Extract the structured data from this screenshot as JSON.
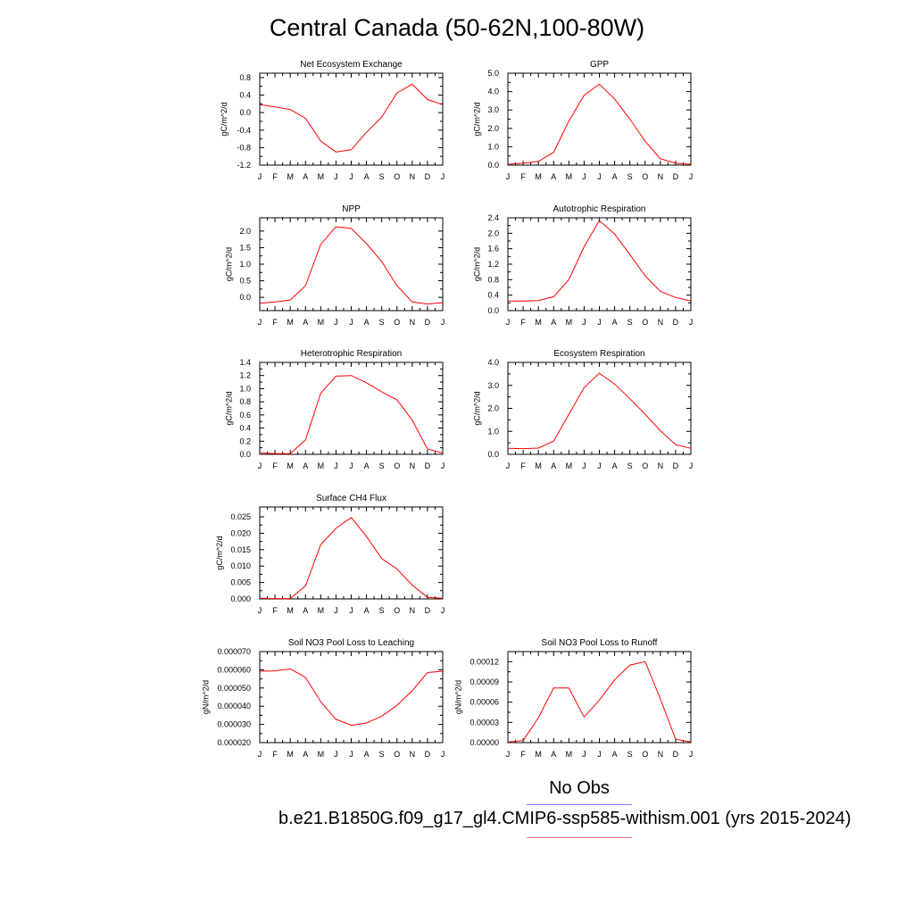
{
  "title": "Central Canada (50-62N,100-80W)",
  "months": [
    "J",
    "F",
    "M",
    "A",
    "M",
    "J",
    "J",
    "A",
    "S",
    "O",
    "N",
    "D",
    "J"
  ],
  "legend": {
    "obs_label": "No Obs",
    "case_label": "b.e21.B1850G.f09_g17_gl4.CMIP6-ssp585-withism.001 (yrs 2015-2024)",
    "obs_color": "#7b7bff",
    "case_color": "#ff7b7b"
  },
  "line_color": "#ff0000",
  "chart_data": [
    {
      "type": "line",
      "title": "Net Ecosystem Exchange",
      "ylabel": "gC/m^2/d",
      "ylim": [
        -1.2,
        0.9
      ],
      "yticks": [
        -1.2,
        -0.8,
        -0.4,
        0.0,
        0.4,
        0.8
      ],
      "ytick_labels": [
        "-1.2",
        "-0.8",
        "-0.4",
        "0.0",
        "0.4",
        "0.8"
      ],
      "values": [
        0.18,
        0.13,
        0.07,
        -0.13,
        -0.65,
        -0.9,
        -0.85,
        -0.45,
        -0.1,
        0.45,
        0.65,
        0.3,
        0.18
      ]
    },
    {
      "type": "line",
      "title": "GPP",
      "ylabel": "gC/m^2/d",
      "ylim": [
        0.0,
        5.0
      ],
      "yticks": [
        0,
        1,
        2,
        3,
        4,
        5
      ],
      "ytick_labels": [
        "0.0",
        "1.0",
        "2.0",
        "3.0",
        "4.0",
        "5.0"
      ],
      "values": [
        0.05,
        0.1,
        0.2,
        0.7,
        2.4,
        3.8,
        4.4,
        3.6,
        2.5,
        1.3,
        0.35,
        0.1,
        0.05
      ]
    },
    {
      "type": "line",
      "title": "NPP",
      "ylabel": "gC/m^2/d",
      "ylim": [
        -0.4,
        2.4
      ],
      "yticks": [
        0.0,
        0.5,
        1.0,
        1.5,
        2.0
      ],
      "ytick_labels": [
        "0.0",
        "0.5",
        "1.0",
        "1.5",
        "2.0"
      ],
      "values": [
        -0.18,
        -0.14,
        -0.08,
        0.35,
        1.6,
        2.13,
        2.08,
        1.62,
        1.08,
        0.35,
        -0.14,
        -0.2,
        -0.16
      ]
    },
    {
      "type": "line",
      "title": "Autotrophic Respiration",
      "ylabel": "gC/m^2/d",
      "ylim": [
        0.0,
        2.4
      ],
      "yticks": [
        0.0,
        0.4,
        0.8,
        1.2,
        1.6,
        2.0,
        2.4
      ],
      "ytick_labels": [
        "0.0",
        "0.4",
        "0.8",
        "1.2",
        "1.6",
        "2.0",
        "2.4"
      ],
      "values": [
        0.25,
        0.25,
        0.26,
        0.36,
        0.8,
        1.65,
        2.33,
        1.98,
        1.45,
        0.9,
        0.5,
        0.34,
        0.25
      ]
    },
    {
      "type": "line",
      "title": "Heterotrophic Respiration",
      "ylabel": "gC/m^2/d",
      "ylim": [
        0.0,
        1.4
      ],
      "yticks": [
        0.0,
        0.2,
        0.4,
        0.6,
        0.8,
        1.0,
        1.2,
        1.4
      ],
      "ytick_labels": [
        "0.0",
        "0.2",
        "0.4",
        "0.6",
        "0.8",
        "1.0",
        "1.2",
        "1.4"
      ],
      "values": [
        0.02,
        0.01,
        0.01,
        0.22,
        0.93,
        1.19,
        1.2,
        1.09,
        0.95,
        0.83,
        0.52,
        0.08,
        0.02
      ]
    },
    {
      "type": "line",
      "title": "Ecosystem Respiration",
      "ylabel": "gC/m^2/d",
      "ylim": [
        0.0,
        4.0
      ],
      "yticks": [
        0,
        1,
        2,
        3,
        4
      ],
      "ytick_labels": [
        "0.0",
        "1.0",
        "2.0",
        "3.0",
        "4.0"
      ],
      "values": [
        0.26,
        0.25,
        0.27,
        0.58,
        1.74,
        2.9,
        3.53,
        3.06,
        2.42,
        1.74,
        1.03,
        0.42,
        0.26
      ]
    },
    {
      "type": "line",
      "title": "Surface CH4 Flux",
      "ylabel": "gC/m^2/d",
      "ylim": [
        0.0,
        0.028
      ],
      "yticks": [
        0.0,
        0.005,
        0.01,
        0.015,
        0.02,
        0.025
      ],
      "ytick_labels": [
        "0.000",
        "0.005",
        "0.010",
        "0.015",
        "0.020",
        "0.025"
      ],
      "values": [
        0.0002,
        0.0001,
        0.0001,
        0.004,
        0.0165,
        0.0215,
        0.0248,
        0.019,
        0.0123,
        0.0091,
        0.0042,
        0.0005,
        0.0002
      ]
    },
    null,
    {
      "type": "line",
      "title": "Soil NO3 Pool Loss to Leaching",
      "ylabel": "gN/m^2/d",
      "ylim": [
        2e-05,
        7e-05
      ],
      "yticks": [
        2e-05,
        3e-05,
        4e-05,
        5e-05,
        6e-05,
        7e-05
      ],
      "ytick_labels": [
        "0.000020",
        "0.000030",
        "0.000040",
        "0.000050",
        "0.000060",
        "0.000070"
      ],
      "values": [
        5.92e-05,
        5.94e-05,
        6.05e-05,
        5.58e-05,
        4.25e-05,
        3.28e-05,
        2.95e-05,
        3.08e-05,
        3.45e-05,
        4.05e-05,
        4.85e-05,
        5.85e-05,
        5.92e-05
      ]
    },
    {
      "type": "line",
      "title": "Soil NO3 Pool Loss to Runoff",
      "ylabel": "gN/m^2/d",
      "ylim": [
        0.0,
        0.000135
      ],
      "yticks": [
        0.0,
        3e-05,
        6e-05,
        9e-05,
        0.00012
      ],
      "ytick_labels": [
        "0.00000",
        "0.00003",
        "0.00006",
        "0.00009",
        "0.00012"
      ],
      "values": [
        1e-06,
        3e-06,
        3.7e-05,
        8.1e-05,
        8.1e-05,
        3.8e-05,
        6.3e-05,
        9.3e-05,
        0.000115,
        0.00012,
        6.5e-05,
        5e-06,
        1e-06
      ]
    }
  ]
}
